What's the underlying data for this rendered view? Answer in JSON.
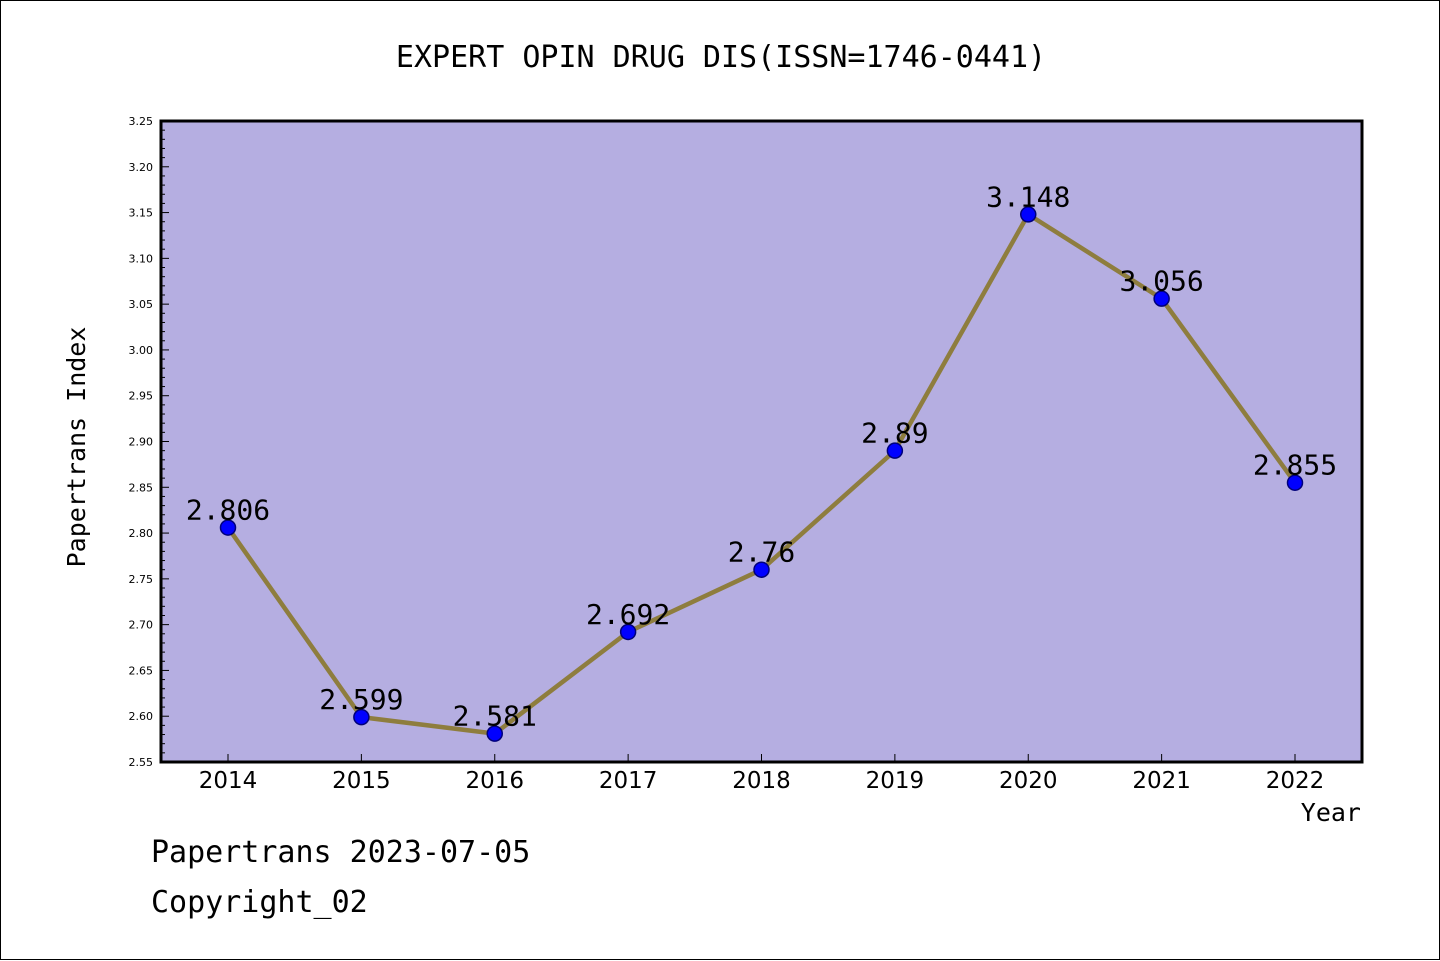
{
  "chart_data": {
    "type": "line",
    "title": "EXPERT OPIN DRUG DIS(ISSN=1746-0441)",
    "xlabel": "Year",
    "ylabel": "Papertrans Index",
    "categories": [
      "2014",
      "2015",
      "2016",
      "2017",
      "2018",
      "2019",
      "2020",
      "2021",
      "2022"
    ],
    "series": [
      {
        "values": [
          2.806,
          2.599,
          2.581,
          2.692,
          2.76,
          2.89,
          3.148,
          3.056,
          2.855
        ],
        "labels": [
          "2.806",
          "2.599",
          "2.581",
          "2.692",
          "2.76",
          "2.89",
          "3.148",
          "3.056",
          "2.855"
        ]
      }
    ],
    "ylim": [
      2.55,
      3.25
    ],
    "yticks": [
      "2.55",
      "2.60",
      "2.65",
      "2.70",
      "2.75",
      "2.80",
      "2.85",
      "2.90",
      "2.95",
      "3.00",
      "3.05",
      "3.10",
      "3.15",
      "3.20",
      "3.25"
    ],
    "grid": false,
    "colors": {
      "plot_background": "#b5aee1",
      "line": "#8e7d3e",
      "marker": "#0000ff",
      "marker_edge": "#00007a"
    }
  },
  "footer": {
    "date_line": "Papertrans 2023-07-05",
    "copyright_line": "Copyright_02"
  }
}
